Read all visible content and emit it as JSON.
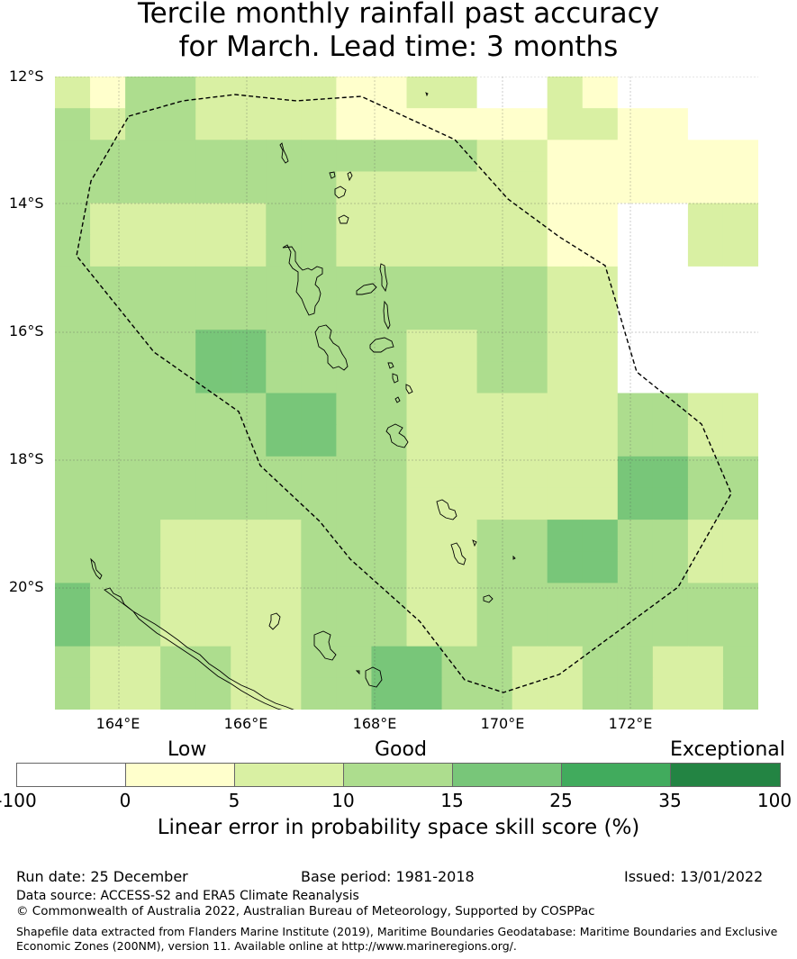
{
  "title": {
    "line1": "Tercile monthly rainfall past accuracy",
    "line2": "for March. Lead time: 3 months"
  },
  "map": {
    "lat_labels": [
      "12°S",
      "14°S",
      "16°S",
      "18°S",
      "20°S"
    ],
    "lon_labels": [
      "164°E",
      "166°E",
      "168°E",
      "170°E",
      "172°E"
    ],
    "lat_range": [
      -12,
      -21.9
    ],
    "lon_range": [
      163,
      174
    ],
    "grid_cells_skill_class": [
      [
        2,
        1,
        3,
        3,
        2,
        2,
        2,
        2,
        1,
        1,
        2,
        2,
        0,
        0,
        2,
        1,
        0,
        0,
        0,
        0
      ],
      [
        3,
        2,
        3,
        3,
        2,
        2,
        2,
        2,
        1,
        1,
        1,
        1,
        1,
        1,
        2,
        2,
        1,
        1,
        0,
        0
      ],
      [
        3,
        3,
        3,
        3,
        3,
        3,
        3,
        3,
        3,
        3,
        3,
        3,
        2,
        2,
        1,
        1,
        1,
        1,
        1,
        1
      ],
      [
        3,
        3,
        3,
        3,
        3,
        3,
        3,
        3,
        2,
        2,
        2,
        2,
        2,
        2,
        1,
        1,
        1,
        1,
        1,
        1
      ],
      [
        3,
        2,
        2,
        2,
        2,
        2,
        3,
        3,
        2,
        2,
        2,
        2,
        2,
        2,
        1,
        1,
        0,
        0,
        2,
        2
      ],
      [
        3,
        2,
        2,
        2,
        2,
        2,
        3,
        3,
        2,
        2,
        2,
        2,
        2,
        2,
        1,
        1,
        0,
        0,
        2,
        2
      ],
      [
        3,
        3,
        3,
        3,
        3,
        3,
        3,
        3,
        3,
        3,
        3,
        3,
        3,
        3,
        2,
        2,
        0,
        0,
        0,
        0
      ],
      [
        3,
        3,
        3,
        3,
        3,
        3,
        3,
        3,
        3,
        3,
        3,
        3,
        3,
        3,
        2,
        2,
        0,
        0,
        0,
        0
      ],
      [
        3,
        3,
        3,
        3,
        4,
        4,
        3,
        3,
        3,
        3,
        2,
        2,
        3,
        3,
        2,
        2,
        0,
        0,
        0,
        0
      ],
      [
        3,
        3,
        3,
        3,
        4,
        4,
        3,
        3,
        3,
        3,
        2,
        2,
        3,
        3,
        2,
        2,
        0,
        0,
        0,
        0
      ],
      [
        3,
        3,
        3,
        3,
        3,
        3,
        4,
        4,
        3,
        3,
        2,
        2,
        2,
        2,
        2,
        2,
        3,
        3,
        2,
        2
      ],
      [
        3,
        3,
        3,
        3,
        3,
        3,
        4,
        4,
        3,
        3,
        2,
        2,
        2,
        2,
        2,
        2,
        3,
        3,
        2,
        2
      ],
      [
        3,
        3,
        3,
        3,
        3,
        3,
        3,
        3,
        3,
        3,
        2,
        2,
        2,
        2,
        2,
        2,
        4,
        4,
        3,
        3
      ],
      [
        3,
        3,
        3,
        3,
        3,
        3,
        3,
        3,
        3,
        3,
        2,
        2,
        2,
        2,
        2,
        2,
        4,
        4,
        3,
        3
      ],
      [
        3,
        3,
        3,
        2,
        2,
        2,
        2,
        3,
        3,
        3,
        2,
        2,
        3,
        3,
        4,
        4,
        3,
        3,
        2,
        2
      ],
      [
        3,
        3,
        3,
        2,
        2,
        2,
        2,
        3,
        3,
        3,
        2,
        2,
        3,
        3,
        4,
        4,
        3,
        3,
        2,
        2
      ],
      [
        4,
        3,
        3,
        2,
        2,
        2,
        2,
        3,
        3,
        3,
        2,
        2,
        3,
        3,
        3,
        3,
        3,
        3,
        3,
        3
      ],
      [
        4,
        3,
        3,
        2,
        2,
        2,
        2,
        3,
        3,
        3,
        2,
        2,
        3,
        3,
        3,
        3,
        3,
        3,
        3,
        3
      ],
      [
        3,
        2,
        2,
        3,
        3,
        2,
        2,
        3,
        3,
        4,
        4,
        3,
        3,
        2,
        2,
        3,
        3,
        2,
        2,
        3
      ],
      [
        3,
        2,
        2,
        3,
        3,
        2,
        2,
        3,
        3,
        4,
        4,
        3,
        3,
        2,
        2,
        3,
        3,
        2,
        2,
        3
      ]
    ]
  },
  "colorbar": {
    "category_labels": [
      "Low",
      "Good",
      "Exceptional"
    ],
    "ticks": [
      "-100",
      "0",
      "5",
      "10",
      "15",
      "25",
      "35",
      "100"
    ],
    "colors": [
      "#ffffff",
      "#ffffcc",
      "#d9f0a3",
      "#addd8e",
      "#78c679",
      "#41ab5d",
      "#238443"
    ],
    "label": "Linear error in probability space skill score (%)"
  },
  "footer": {
    "run_date": "Run date: 25 December",
    "base_period": "Base period: 1981-2018",
    "issued": "Issued: 13/01/2022",
    "data_source": "Data source: ACCESS-S2 and ERA5 Climate Reanalysis",
    "copyright": "© Commonwealth of Australia 2022, Australian Bureau of Meteorology, Supported by COSPPac",
    "shapefile_line1": "Shapefile data extracted from Flanders Marine Institute (2019), Maritime Boundaries Geodatabase: Maritime Boundaries and Exclusive",
    "shapefile_line2": "Economic Zones (200NM), version 11. Available online at http://www.marineregions.org/."
  }
}
